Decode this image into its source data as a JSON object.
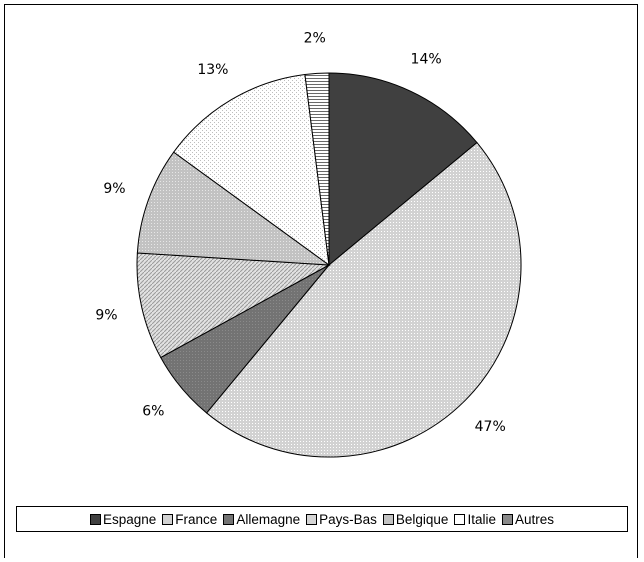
{
  "chart_data": {
    "type": "pie",
    "categories": [
      "Espagne",
      "France",
      "Allemagne",
      "Pays-Bas",
      "Belgique",
      "Italie",
      "Autres"
    ],
    "values": [
      14,
      47,
      6,
      9,
      9,
      13,
      2
    ],
    "labels": [
      "14%",
      "47%",
      "6%",
      "9%",
      "9%",
      "13%",
      "2%"
    ],
    "colors": [
      "#404040",
      "#cfcfcf",
      "#6f6f6f",
      "#d9d9d9",
      "#c0c0c0",
      "#f5f5f5",
      "#909090"
    ],
    "legend_position": "bottom",
    "start_angle": "12 o'clock",
    "direction": "clockwise"
  }
}
